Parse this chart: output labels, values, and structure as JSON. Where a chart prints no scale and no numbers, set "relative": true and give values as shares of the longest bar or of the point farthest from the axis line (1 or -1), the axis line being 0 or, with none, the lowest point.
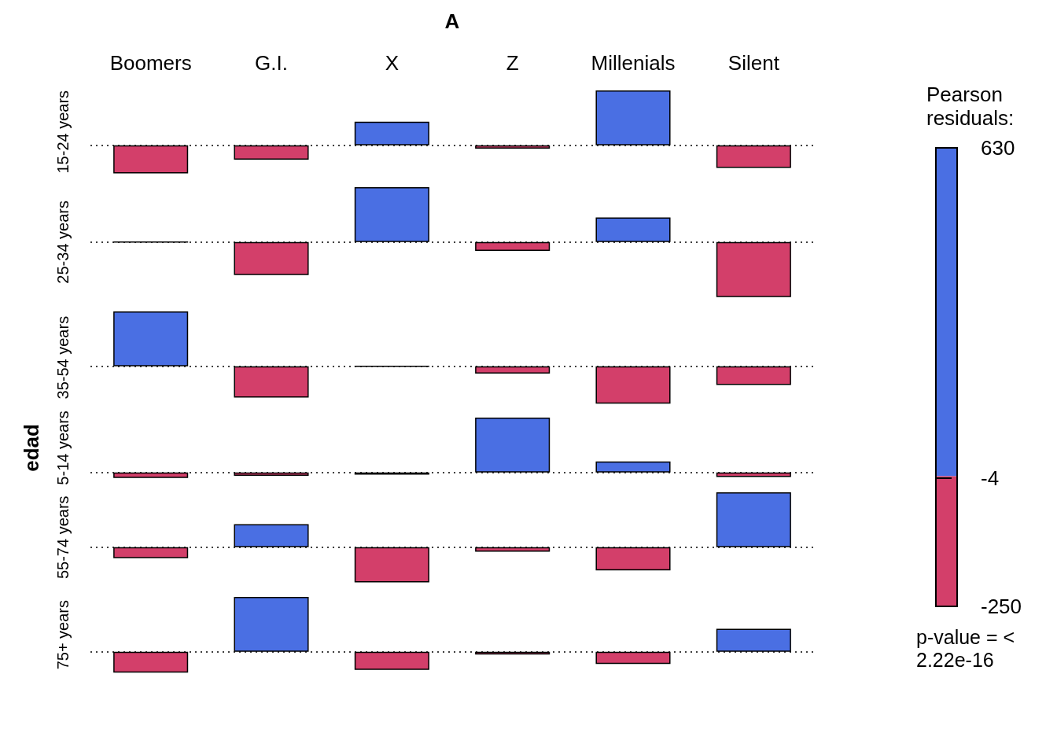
{
  "chart_data": [
    {
      "type": "bar",
      "relative": true,
      "xlabel": "A",
      "ylabel": "15-24 years",
      "clabel": "Pearson residuals:",
      "clim": [
        -250,
        630
      ],
      "cticks": [
        -250,
        -4,
        630
      ],
      "annotations": [
        "p-value = < 2.22e-16"
      ],
      "categories": [
        "Boomers",
        "G.I.",
        "X",
        "Z",
        "Millenials",
        "Silent"
      ],
      "values": [
        -0.51,
        -0.26,
        0.43,
        -0.06,
        1,
        -0.41
      ],
      "colors": [
        "#d33f6a",
        "#d33f6a",
        "#4a6fe3",
        "#d33f6a",
        "#4a6fe3",
        "#d33f6a"
      ],
      "ref_lines": [
        {
          "axis": "y",
          "value": 0,
          "color": "#000000",
          "line_style": "dotted"
        }
      ]
    },
    {
      "type": "bar",
      "relative": true,
      "ylabel": "25-34 years",
      "categories": [
        null,
        null,
        null,
        null,
        null,
        null
      ],
      "values": [
        0,
        -0.6,
        1,
        -0.16,
        0.45,
        -1
      ],
      "colors": [
        "#000000",
        "#d33f6a",
        "#4a6fe3",
        "#d33f6a",
        "#4a6fe3",
        "#d33f6a"
      ],
      "ref_lines": [
        {
          "axis": "y",
          "value": 0,
          "color": "#000000",
          "line_style": "dotted"
        }
      ]
    },
    {
      "type": "bar",
      "relative": true,
      "ylabel": "35-54 years",
      "categories": [
        null,
        null,
        null,
        null,
        null,
        null
      ],
      "values": [
        1,
        -0.57,
        0,
        -0.13,
        -0.68,
        -0.34
      ],
      "colors": [
        "#4a6fe3",
        "#d33f6a",
        "#000000",
        "#d33f6a",
        "#d33f6a",
        "#d33f6a"
      ],
      "ref_lines": [
        {
          "axis": "y",
          "value": 0,
          "color": "#000000",
          "line_style": "dotted"
        }
      ]
    },
    {
      "type": "bar",
      "relative": true,
      "ylabel": "5-14 years",
      "annotations": [
        "edad"
      ],
      "categories": [
        null,
        null,
        null,
        null,
        null,
        null
      ],
      "values": [
        -0.1,
        -0.06,
        -0.04,
        1,
        0.2,
        -0.08
      ],
      "colors": [
        "#d33f6a",
        "#d33f6a",
        "#d33f6a",
        "#4a6fe3",
        "#4a6fe3",
        "#d33f6a"
      ],
      "ref_lines": [
        {
          "axis": "y",
          "value": 0,
          "color": "#000000",
          "line_style": "dotted"
        }
      ]
    },
    {
      "type": "bar",
      "relative": true,
      "ylabel": "55-74 years",
      "categories": [
        null,
        null,
        null,
        null,
        null,
        null
      ],
      "values": [
        -0.2,
        0.42,
        -0.64,
        -0.08,
        -0.42,
        1
      ],
      "colors": [
        "#d33f6a",
        "#4a6fe3",
        "#d33f6a",
        "#d33f6a",
        "#d33f6a",
        "#4a6fe3"
      ],
      "ref_lines": [
        {
          "axis": "y",
          "value": 0,
          "color": "#000000",
          "line_style": "dotted"
        }
      ]
    },
    {
      "type": "bar",
      "relative": true,
      "ylabel": "75+ years",
      "categories": [
        null,
        null,
        null,
        null,
        null,
        null
      ],
      "values": [
        -0.38,
        1,
        -0.33,
        -0.05,
        -0.22,
        0.42
      ],
      "colors": [
        "#d33f6a",
        "#4a6fe3",
        "#d33f6a",
        "#d33f6a",
        "#d33f6a",
        "#4a6fe3"
      ],
      "ref_lines": [
        {
          "axis": "y",
          "value": 0,
          "color": "#000000",
          "line_style": "dotted"
        }
      ]
    }
  ]
}
